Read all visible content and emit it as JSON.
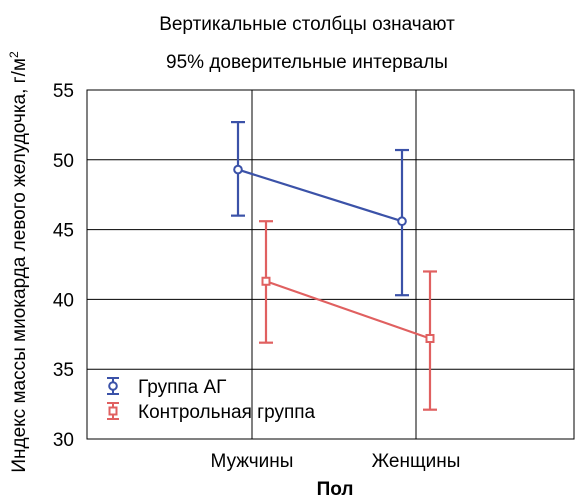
{
  "chart_data": {
    "type": "line",
    "title_lines": [
      "Вертикальные столбцы означают",
      "95% доверительные интервалы"
    ],
    "xlabel": "Пол",
    "ylabel": "Индекс массы миокарда левого желудочка, г/м",
    "ylabel_sup": "2",
    "categories": [
      "Мужчины",
      "Женщины"
    ],
    "ylim": [
      30,
      55
    ],
    "yticks": [
      "55",
      "50",
      "45",
      "40",
      "35",
      "30"
    ],
    "grid": true,
    "legend_position": "bottom-left",
    "series": [
      {
        "name": "Группа АГ",
        "marker": "circle",
        "color": "#3b52a8",
        "values": [
          49.3,
          45.6
        ],
        "ci_low": [
          46.0,
          40.3
        ],
        "ci_high": [
          52.7,
          50.7
        ]
      },
      {
        "name": "Контрольная группа",
        "marker": "square",
        "color": "#e06060",
        "values": [
          41.3,
          37.2
        ],
        "ci_low": [
          36.9,
          32.1
        ],
        "ci_high": [
          45.6,
          42.0
        ]
      }
    ]
  }
}
